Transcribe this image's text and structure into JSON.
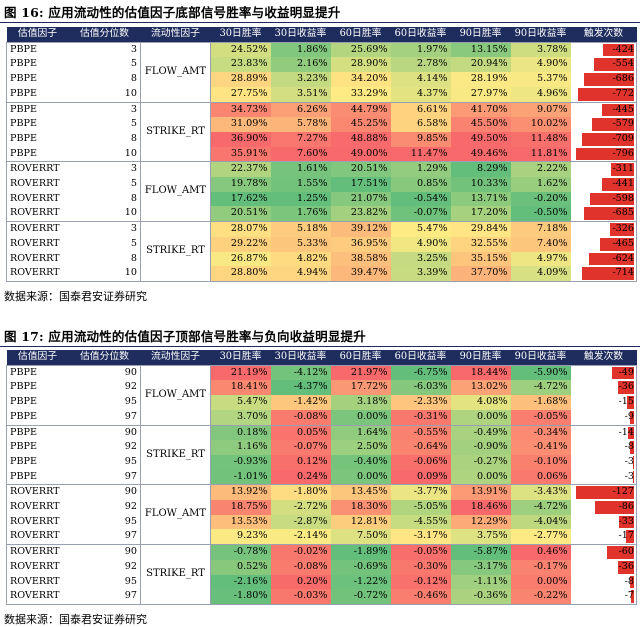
{
  "figure16": {
    "title": "图 16:  应用流动性的估值因子底部信号胜率与收益明显提升",
    "source": "数据来源：国泰君安证券研究",
    "headers": [
      "估值因子",
      "估值分位数",
      "流动性因子",
      "30日胜率",
      "30日收益率",
      "60日胜率",
      "60日收益率",
      "90日胜率",
      "90日收益率",
      "触发次数"
    ],
    "colors": {
      "win30": "#f8696b",
      "ret30": "#f8696b",
      "win60": "#f8696b",
      "ret60": "#f8696b",
      "win90": "#f8696b",
      "ret90": "#f8696b"
    },
    "groups": [
      {
        "liquidity": "FLOW_AMT",
        "rows": [
          {
            "factor": "PBPE",
            "pct": "3",
            "v": [
              "24.52%",
              "1.86%",
              "25.69%",
              "1.97%",
              "13.15%",
              "3.78%"
            ],
            "count": "-424"
          },
          {
            "factor": "PBPE",
            "pct": "5",
            "v": [
              "23.83%",
              "2.16%",
              "28.90%",
              "2.78%",
              "20.94%",
              "4.90%"
            ],
            "count": "-554"
          },
          {
            "factor": "PBPE",
            "pct": "8",
            "v": [
              "28.89%",
              "3.23%",
              "34.20%",
              "4.14%",
              "28.19%",
              "5.37%"
            ],
            "count": "-686"
          },
          {
            "factor": "PBPE",
            "pct": "10",
            "v": [
              "27.75%",
              "3.51%",
              "33.29%",
              "4.37%",
              "27.97%",
              "4.96%"
            ],
            "count": "-772"
          }
        ]
      },
      {
        "liquidity": "STRIKE_RT",
        "rows": [
          {
            "factor": "PBPE",
            "pct": "3",
            "v": [
              "34.73%",
              "6.26%",
              "44.79%",
              "6.61%",
              "41.70%",
              "9.07%"
            ],
            "count": "-445"
          },
          {
            "factor": "PBPE",
            "pct": "5",
            "v": [
              "31.09%",
              "5.78%",
              "45.25%",
              "6.58%",
              "45.50%",
              "10.02%"
            ],
            "count": "-579"
          },
          {
            "factor": "PBPE",
            "pct": "8",
            "v": [
              "36.90%",
              "7.27%",
              "48.88%",
              "9.85%",
              "49.50%",
              "11.48%"
            ],
            "count": "-709"
          },
          {
            "factor": "PBPE",
            "pct": "10",
            "v": [
              "35.91%",
              "7.60%",
              "49.00%",
              "11.47%",
              "49.46%",
              "11.81%"
            ],
            "count": "-796"
          }
        ]
      },
      {
        "liquidity": "FLOW_AMT",
        "rows": [
          {
            "factor": "ROVERRT",
            "pct": "3",
            "v": [
              "22.37%",
              "1.61%",
              "20.51%",
              "1.29%",
              "8.29%",
              "2.22%"
            ],
            "count": "-311"
          },
          {
            "factor": "ROVERRT",
            "pct": "5",
            "v": [
              "19.78%",
              "1.55%",
              "17.51%",
              "0.85%",
              "10.33%",
              "1.62%"
            ],
            "count": "-441"
          },
          {
            "factor": "ROVERRT",
            "pct": "8",
            "v": [
              "17.62%",
              "1.25%",
              "21.07%",
              "-0.54%",
              "13.71%",
              "-0.20%"
            ],
            "count": "-598"
          },
          {
            "factor": "ROVERRT",
            "pct": "10",
            "v": [
              "20.51%",
              "1.76%",
              "23.82%",
              "-0.07%",
              "17.20%",
              "-0.50%"
            ],
            "count": "-685"
          }
        ]
      },
      {
        "liquidity": "STRIKE_RT",
        "rows": [
          {
            "factor": "ROVERRT",
            "pct": "3",
            "v": [
              "28.07%",
              "5.18%",
              "39.12%",
              "5.47%",
              "29.84%",
              "7.18%"
            ],
            "count": "-326"
          },
          {
            "factor": "ROVERRT",
            "pct": "5",
            "v": [
              "29.22%",
              "5.33%",
              "36.95%",
              "4.90%",
              "32.55%",
              "7.40%"
            ],
            "count": "-465"
          },
          {
            "factor": "ROVERRT",
            "pct": "8",
            "v": [
              "26.87%",
              "4.82%",
              "38.58%",
              "3.25%",
              "35.15%",
              "4.97%"
            ],
            "count": "-624"
          },
          {
            "factor": "ROVERRT",
            "pct": "10",
            "v": [
              "28.80%",
              "4.94%",
              "39.47%",
              "3.39%",
              "37.70%",
              "4.09%"
            ],
            "count": "-714"
          }
        ]
      }
    ]
  },
  "figure17": {
    "title": "图 17:  应用流动性的估值因子顶部信号胜率与负向收益明显提升",
    "source": "数据来源：国泰君安证券研究",
    "headers": [
      "估值因子",
      "估值分位数",
      "流动性因子",
      "30日胜率",
      "30日收益率",
      "60日胜率",
      "60日收益率",
      "90日胜率",
      "90日收益率",
      "触发次数"
    ],
    "groups": [
      {
        "liquidity": "FLOW_AMT",
        "rows": [
          {
            "factor": "PBPE",
            "pct": "90",
            "v": [
              "21.19%",
              "-4.12%",
              "21.97%",
              "-6.75%",
              "18.44%",
              "-5.90%"
            ],
            "count": "-49"
          },
          {
            "factor": "PBPE",
            "pct": "92",
            "v": [
              "18.41%",
              "-4.37%",
              "17.72%",
              "-6.03%",
              "13.02%",
              "-4.72%"
            ],
            "count": "-36"
          },
          {
            "factor": "PBPE",
            "pct": "95",
            "v": [
              "5.47%",
              "-1.42%",
              "3.18%",
              "-2.33%",
              "4.08%",
              "-1.68%"
            ],
            "count": "-15"
          },
          {
            "factor": "PBPE",
            "pct": "97",
            "v": [
              "3.70%",
              "-0.08%",
              "0.00%",
              "-0.31%",
              "0.00%",
              "-0.05%"
            ],
            "count": "-9"
          }
        ]
      },
      {
        "liquidity": "STRIKE_RT",
        "rows": [
          {
            "factor": "PBPE",
            "pct": "90",
            "v": [
              "0.18%",
              "0.05%",
              "1.64%",
              "-0.55%",
              "-0.49%",
              "-0.34%"
            ],
            "count": "-14"
          },
          {
            "factor": "PBPE",
            "pct": "92",
            "v": [
              "1.16%",
              "-0.07%",
              "2.50%",
              "-0.64%",
              "-0.90%",
              "-0.41%"
            ],
            "count": "-8"
          },
          {
            "factor": "PBPE",
            "pct": "95",
            "v": [
              "-0.93%",
              "0.12%",
              "-0.40%",
              "-0.06%",
              "-0.27%",
              "-0.10%"
            ],
            "count": "-3"
          },
          {
            "factor": "PBPE",
            "pct": "97",
            "v": [
              "-1.01%",
              "0.24%",
              "0.00%",
              "0.09%",
              "0.00%",
              "0.06%"
            ],
            "count": "-3"
          }
        ]
      },
      {
        "liquidity": "FLOW_AMT",
        "rows": [
          {
            "factor": "ROVERRT",
            "pct": "90",
            "v": [
              "13.92%",
              "-1.80%",
              "13.45%",
              "-3.77%",
              "13.91%",
              "-3.43%"
            ],
            "count": "-127"
          },
          {
            "factor": "ROVERRT",
            "pct": "92",
            "v": [
              "18.75%",
              "-2.72%",
              "18.30%",
              "-5.05%",
              "18.46%",
              "-4.72%"
            ],
            "count": "-86"
          },
          {
            "factor": "ROVERRT",
            "pct": "95",
            "v": [
              "13.53%",
              "-2.87%",
              "12.81%",
              "-4.55%",
              "12.29%",
              "-4.04%"
            ],
            "count": "-33"
          },
          {
            "factor": "ROVERRT",
            "pct": "97",
            "v": [
              "9.23%",
              "-2.14%",
              "7.50%",
              "-3.17%",
              "3.75%",
              "-2.77%"
            ],
            "count": "-17"
          }
        ]
      },
      {
        "liquidity": "STRIKE_RT",
        "rows": [
          {
            "factor": "ROVERRT",
            "pct": "90",
            "v": [
              "-0.78%",
              "-0.02%",
              "-1.89%",
              "-0.05%",
              "-5.87%",
              "0.46%"
            ],
            "count": "-60"
          },
          {
            "factor": "ROVERRT",
            "pct": "92",
            "v": [
              "0.52%",
              "-0.08%",
              "-0.69%",
              "-0.30%",
              "-3.17%",
              "-0.17%"
            ],
            "count": "-36"
          },
          {
            "factor": "ROVERRT",
            "pct": "95",
            "v": [
              "-2.16%",
              "0.20%",
              "-1.22%",
              "-0.12%",
              "-1.11%",
              "0.00%"
            ],
            "count": "-8"
          },
          {
            "factor": "ROVERRT",
            "pct": "97",
            "v": [
              "-1.80%",
              "-0.03%",
              "-0.72%",
              "-0.46%",
              "-0.36%",
              "-0.22%"
            ],
            "count": "-7"
          }
        ]
      }
    ]
  }
}
